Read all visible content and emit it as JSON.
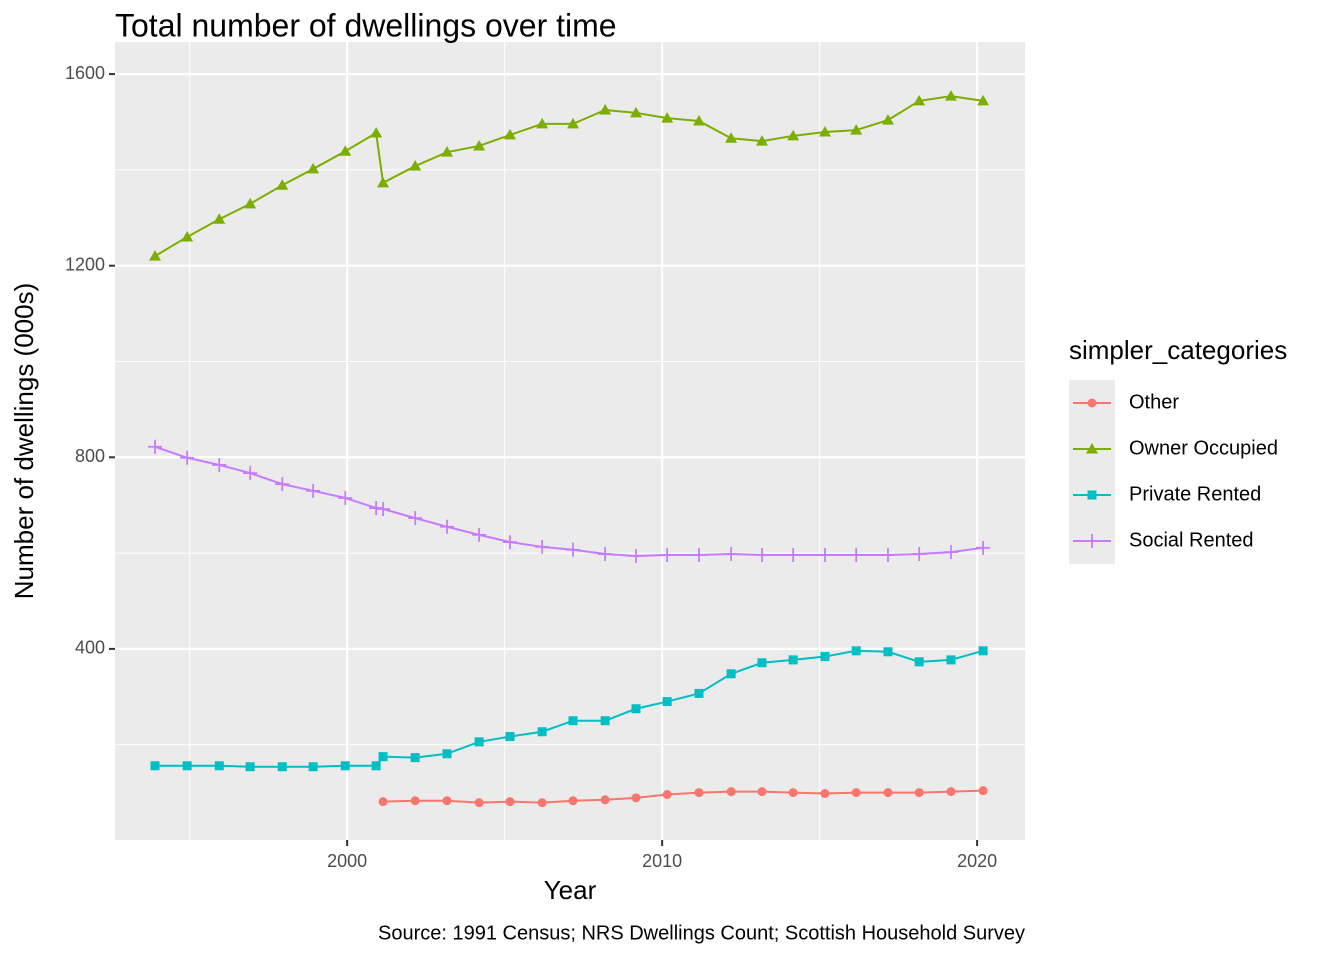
{
  "chart_data": {
    "type": "line",
    "title": "Total number of dwellings over time",
    "x_label": "Year",
    "y_label": "Number of dwellings (000s)",
    "caption": "Source: 1991 Census; NRS Dwellings Count; Scottish Household Survey",
    "legend_title": "simpler_categories",
    "legend_position": "right",
    "grid": true,
    "minor_grid": true,
    "x": [
      1993.9,
      1994.92,
      1995.94,
      1996.92,
      1997.94,
      1998.92,
      1999.94,
      2000.92,
      2001.14,
      2002.16,
      2003.17,
      2004.19,
      2005.17,
      2006.19,
      2007.17,
      2008.19,
      2009.17,
      2010.16,
      2011.17,
      2012.19,
      2013.17,
      2014.16,
      2015.17,
      2016.16,
      2017.17,
      2018.16,
      2019.17,
      2020.19
    ],
    "xlim": [
      1992.63,
      2021.52
    ],
    "xticks": [
      2000,
      2010,
      2020
    ],
    "ylim": [
      1,
      1667
    ],
    "yticks": [
      400,
      800,
      1200,
      1600
    ],
    "series": [
      {
        "name": "Other",
        "color": "#F8766D",
        "shape": "circle",
        "values": [
          null,
          null,
          null,
          null,
          null,
          null,
          null,
          null,
          81,
          83,
          83,
          79,
          81,
          79,
          83,
          85,
          89,
          96,
          100,
          102,
          102,
          100,
          98,
          100,
          100,
          100,
          102,
          104
        ]
      },
      {
        "name": "Owner Occupied",
        "color": "#7CAE00",
        "shape": "triangle",
        "values": [
          1220,
          1260,
          1297,
          1329,
          1368,
          1402,
          1439,
          1477,
          1373,
          1408,
          1437,
          1450,
          1473,
          1496,
          1496,
          1525,
          1519,
          1508,
          1502,
          1466,
          1460,
          1471,
          1479,
          1483,
          1504,
          1544,
          1554,
          1544
        ]
      },
      {
        "name": "Private Rented",
        "color": "#00BFC4",
        "shape": "square",
        "values": [
          156,
          156,
          156,
          154,
          154,
          154,
          156,
          156,
          175,
          173,
          181,
          206,
          217,
          227,
          250,
          250,
          275,
          290,
          307,
          348,
          371,
          377,
          384,
          396,
          394,
          373,
          377,
          396
        ]
      },
      {
        "name": "Social Rented",
        "color": "#C77CFF",
        "shape": "plus",
        "values": [
          822,
          799,
          784,
          767,
          744,
          730,
          715,
          694,
          692,
          673,
          655,
          638,
          623,
          613,
          607,
          598,
          594,
          596,
          596,
          598,
          596,
          596,
          596,
          596,
          596,
          598,
          602,
          611
        ]
      }
    ]
  }
}
